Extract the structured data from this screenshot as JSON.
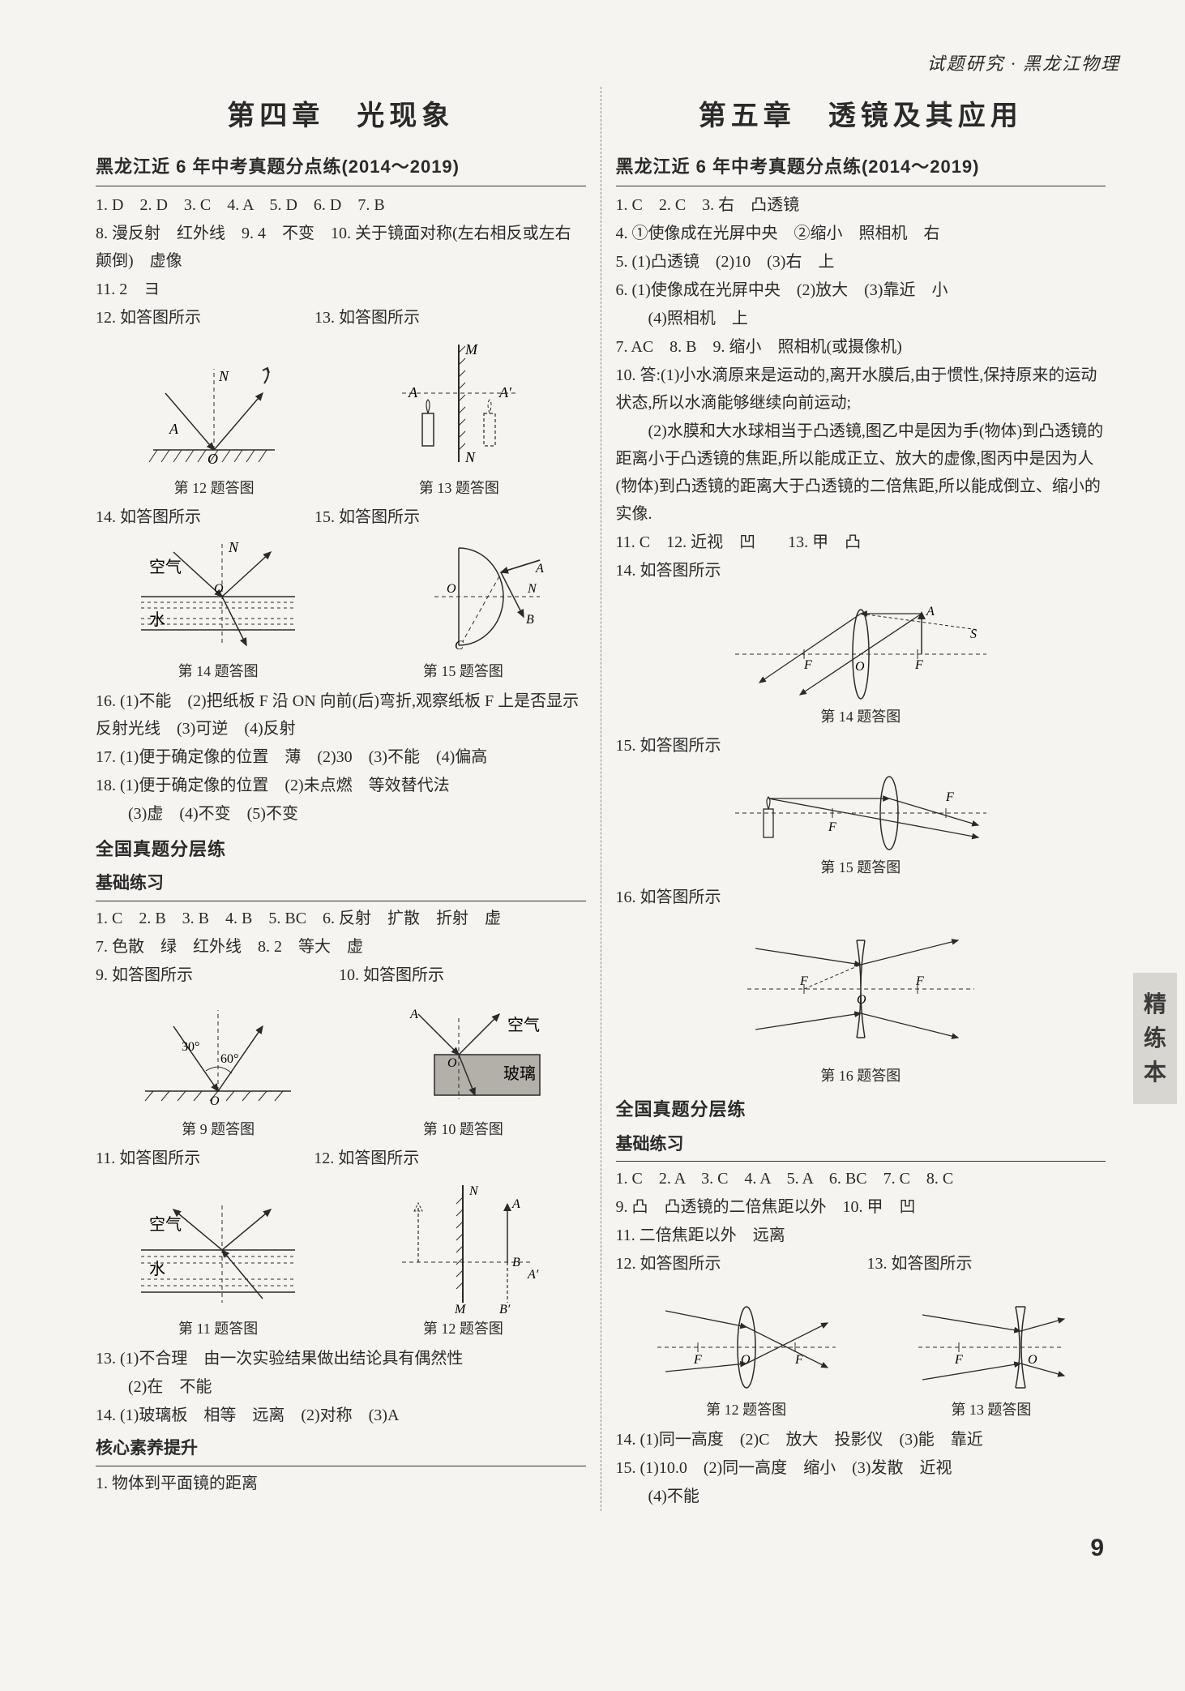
{
  "header_right": "试题研究 · 黑龙江物理",
  "side_tab": "精\n练\n本",
  "page_number": "9",
  "left": {
    "chapter": "第四章　光现象",
    "sec1_title": "黑龙江近 6 年中考真题分点练(2014～2019)",
    "sec1_lines": [
      "1. D　2. D　3. C　4. A　5. D　6. D　7. B",
      "8. 漫反射　红外线　9. 4　不变　10. 关于镜面对称(左右相反或左右颠倒)　虚像",
      "11. 2　ヨ",
      "12. 如答图所示　　　　　　　13. 如答图所示"
    ],
    "fig12_caption": "第 12 题答图",
    "fig13_caption": "第 13 题答图",
    "line_14_15": "14. 如答图所示　　　　　　　15. 如答图所示",
    "fig14_caption": "第 14 题答图",
    "fig15_caption": "第 15 题答图",
    "lines_16_18": [
      "16. (1)不能　(2)把纸板 F 沿 ON 向前(后)弯折,观察纸板 F 上是否显示反射光线　(3)可逆　(4)反射",
      "17. (1)便于确定像的位置　薄　(2)30　(3)不能　(4)偏高",
      "18. (1)便于确定像的位置　(2)未点燃　等效替代法",
      "　　(3)虚　(4)不变　(5)不变"
    ],
    "sec2_title": "全国真题分层练",
    "sub_basic": "基础练习",
    "basic_lines": [
      "1. C　2. B　3. B　4. B　5. BC　6. 反射　扩散　折射　虚",
      "7. 色散　绿　红外线　8. 2　等大　虚",
      "9. 如答图所示　　　　　　　　　10. 如答图所示"
    ],
    "fig9_caption": "第 9 题答图",
    "fig10_caption": "第 10 题答图",
    "fig10_labels": {
      "air": "空气",
      "glass": "玻璃"
    },
    "line_11_12": "11. 如答图所示　　　　　　　12. 如答图所示",
    "fig11_caption": "第 11 题答图",
    "fig11_labels": {
      "air": "空气",
      "water": "水"
    },
    "fig12b_caption": "第 12 题答图",
    "lines_13_14": [
      "13. (1)不合理　由一次实验结果做出结论具有偶然性",
      "　　(2)在　不能",
      "14. (1)玻璃板　相等　远离　(2)对称　(3)A"
    ],
    "sub_core": "核心素养提升",
    "core_lines": [
      "1. 物体到平面镜的距离"
    ]
  },
  "right": {
    "chapter": "第五章　透镜及其应用",
    "sec1_title": "黑龙江近 6 年中考真题分点练(2014～2019)",
    "sec1_lines": [
      "1. C　2. C　3. 右　凸透镜",
      "4. ①使像成在光屏中央　②缩小　照相机　右",
      "5. (1)凸透镜　(2)10　(3)右　上",
      "6. (1)使像成在光屏中央　(2)放大　(3)靠近　小",
      "　　(4)照相机　上",
      "7. AC　8. B　9. 缩小　照相机(或摄像机)",
      "10. 答:(1)小水滴原来是运动的,离开水膜后,由于惯性,保持原来的运动状态,所以水滴能够继续向前运动;",
      "　　(2)水膜和大水球相当于凸透镜,图乙中是因为手(物体)到凸透镜的距离小于凸透镜的焦距,所以能成正立、放大的虚像,图丙中是因为人(物体)到凸透镜的距离大于凸透镜的二倍焦距,所以能成倒立、缩小的实像.",
      "11. C　12. 近视　凹　　13. 甲　凸",
      "14. 如答图所示"
    ],
    "fig14_caption": "第 14 题答图",
    "line_15": "15. 如答图所示",
    "fig15_caption": "第 15 题答图",
    "line_16": "16. 如答图所示",
    "fig16_caption": "第 16 题答图",
    "sec2_title": "全国真题分层练",
    "sub_basic": "基础练习",
    "basic_lines": [
      "1. C　2. A　3. C　4. A　5. A　6. BC　7. C　8. C",
      "9. 凸　凸透镜的二倍焦距以外　10. 甲　凹",
      "11. 二倍焦距以外　远离",
      "12. 如答图所示　　　　　　　　　13. 如答图所示"
    ],
    "fig12_caption": "第 12 题答图",
    "fig13_caption": "第 13 题答图",
    "lines_14_15": [
      "14. (1)同一高度　(2)C　放大　投影仪　(3)能　靠近",
      "15. (1)10.0　(2)同一高度　缩小　(3)发散　近视",
      "　　(4)不能"
    ]
  },
  "svg_style": {
    "stroke": "#2a2a2a",
    "stroke_width": 1.5,
    "dash": "5,4",
    "arrow_fill": "#2a2a2a",
    "bg": "none",
    "hatch_gray": "#888"
  }
}
